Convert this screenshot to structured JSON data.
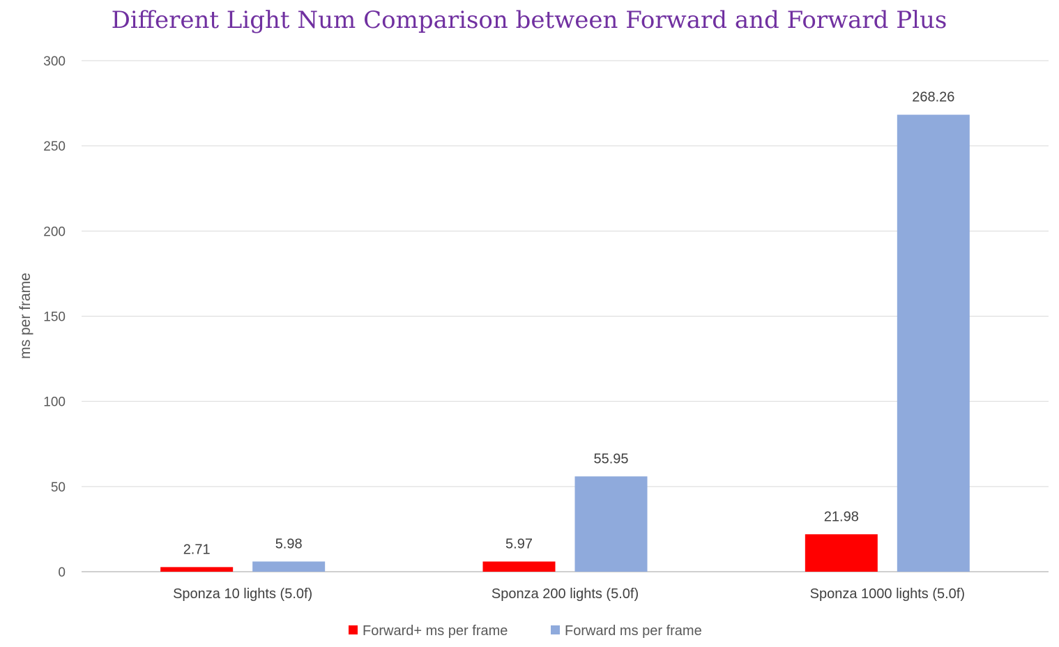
{
  "chart_data": {
    "type": "bar",
    "title": "Different Light Num Comparison between Forward and Forward Plus",
    "ylabel": "ms per frame",
    "xlabel": "",
    "ylim": [
      0,
      300
    ],
    "yticks": [
      0,
      50,
      100,
      150,
      200,
      250,
      300
    ],
    "grid": true,
    "legend_position": "bottom",
    "categories": [
      "Sponza 10 lights (5.0f)",
      "Sponza 200 lights (5.0f)",
      "Sponza 1000 lights (5.0f)"
    ],
    "series": [
      {
        "name": "Forward+ ms per frame",
        "color": "#ff0000",
        "values": [
          2.71,
          5.97,
          21.98
        ],
        "labels": [
          "2.71",
          "5.97",
          "21.98"
        ]
      },
      {
        "name": "Forward ms per frame",
        "color": "#8faadc",
        "values": [
          5.98,
          55.95,
          268.26
        ],
        "labels": [
          "5.98",
          "55.95",
          "268.26"
        ]
      }
    ]
  }
}
